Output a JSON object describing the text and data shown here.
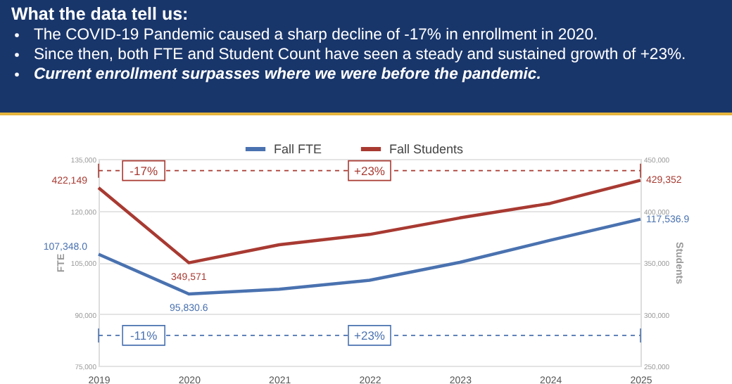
{
  "chart_data": {
    "type": "line",
    "title": "What the data tell us:",
    "annotations": [
      "The COVID-19 Pandemic caused a sharp decline of -17% in enrollment in 2020.",
      "Since then, both FTE and Student Count have seen a steady and sustained growth of +23%.",
      "Current enrollment surpasses where we were before the pandemic.",
      "-17%",
      "+23%",
      "-11%",
      "+23%"
    ],
    "categories": [
      "2019",
      "2020",
      "2021",
      "2022",
      "2023",
      "2024",
      "2025"
    ],
    "series": [
      {
        "name": "Fall FTE",
        "color": "#4a72b0",
        "values": [
          107348.0,
          95830.6,
          97200,
          99800,
          105000,
          111400,
          117536.9
        ],
        "value_labels": [
          "107,348.0",
          "95,830.6",
          null,
          null,
          null,
          null,
          "117,536.9"
        ]
      },
      {
        "name": "Fall Students",
        "color": "#a83a32",
        "axis": "y2",
        "values": [
          422149,
          349571,
          367000,
          377000,
          393000,
          407000,
          429352
        ],
        "value_labels": [
          "422,149",
          "349,571",
          null,
          null,
          null,
          null,
          "429,352"
        ]
      }
    ],
    "ylabel": "FTE",
    "y2label": "Students",
    "ylim": [
      75000,
      135000
    ],
    "yticks": [
      {
        "value": 75000,
        "label": "75,000"
      },
      {
        "value": 90000,
        "label": "90,000"
      },
      {
        "value": 105000,
        "label": "105,000"
      },
      {
        "value": 120000,
        "label": "120,000"
      },
      {
        "value": 135000,
        "label": "135,000"
      }
    ],
    "y2lim": [
      250000,
      450000
    ],
    "y2ticks": [
      {
        "value": 250000,
        "label": "250,000"
      },
      {
        "value": 300000,
        "label": "300,000"
      },
      {
        "value": 350000,
        "label": "350,000"
      },
      {
        "value": 400000,
        "label": "400,000"
      },
      {
        "value": 450000,
        "label": "450,000"
      }
    ],
    "ref_lines": [
      {
        "axis": "y",
        "value": 131600,
        "label": null,
        "color": "#a83a32",
        "line_style": "dashed"
      },
      {
        "axis": "y",
        "value": 83800,
        "label": null,
        "color": "#4a72b0",
        "line_style": "dashed"
      }
    ],
    "grid": "y",
    "legend": "top",
    "marker": "none",
    "line_style": "solid"
  }
}
